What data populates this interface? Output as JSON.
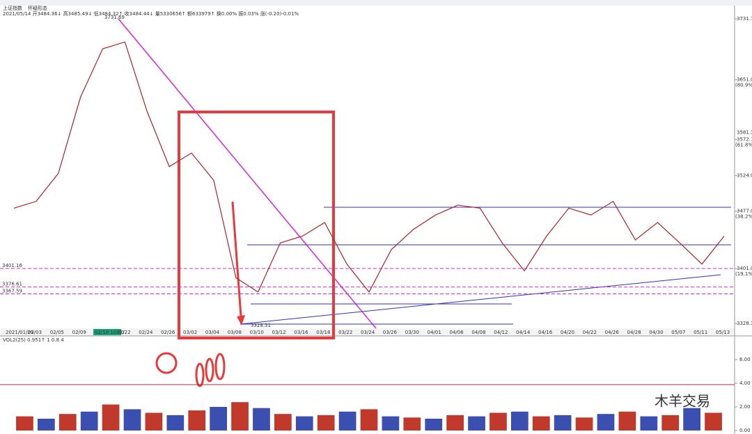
{
  "chart_data": [
    {
      "type": "line",
      "symbol": "上证指数",
      "pattern": "怀疑形态",
      "header": "2021/05/14 开3484.36↓ 高3485.49↓ 低3484.32↑ 收3484.44↓ 量5330656↑ 额633979↑ 换0.00% 振0.03% 涨(-0.20)-0.01%",
      "high_label": "3731.69",
      "low_label": "3328.31",
      "cursor_label": "02/18 10:00",
      "categories": [
        "2021/01/29",
        "02/03",
        "02/05",
        "02/09",
        null,
        "02/22",
        "02/24",
        "02/26",
        "03/02",
        "03/04",
        "03/08",
        "03/10",
        "03/12",
        "03/16",
        "03/18",
        "03/22",
        "03/24",
        "03/26",
        "03/30",
        "04/01",
        "04/06",
        "04/08",
        "04/12",
        "04/14",
        "04/16",
        "04/20",
        "04/22",
        "04/26",
        "04/28",
        "04/30",
        "05/07",
        "05/11",
        "05/13"
      ],
      "series": [
        {
          "name": "上证指数",
          "color": "#b22222",
          "values": [
            3481,
            3490,
            3527,
            3628,
            3692,
            3701,
            3609,
            3536,
            3554,
            3518,
            3389,
            3370,
            3435,
            3444,
            3462,
            3407,
            3370,
            3426,
            3453,
            3472,
            3485,
            3481,
            3435,
            3398,
            3444,
            3481,
            3472,
            3490,
            3439,
            3462,
            3435,
            3407,
            3444
          ]
        }
      ],
      "ylim": [
        3322,
        3740
      ],
      "yticks": [
        {
          "value": 3731.7,
          "label": "3731.7"
        },
        {
          "value": 3651,
          "label": "3651.0"
        },
        {
          "value": 3572.1,
          "label": "3572.1"
        },
        {
          "value": 3524,
          "label": "3524.0"
        },
        {
          "value": 3477,
          "label": "3477.0"
        },
        {
          "value": 3401,
          "label": "3401.0"
        },
        {
          "value": 3328.3,
          "label": "3328.3"
        }
      ],
      "fib_levels": [
        {
          "value": 3651,
          "label": "(80.9%)"
        },
        {
          "value": 3572.1,
          "label": "(61.8%)"
        },
        {
          "value": 3477,
          "label": "(38.2%)"
        },
        {
          "value": 3401,
          "label": "(19.1%)"
        }
      ],
      "last_price": {
        "value": 3581.3,
        "label": "3581.3"
      },
      "hlines": [
        3401.16,
        3376.61,
        3367.59
      ],
      "watermark": "木羊交易"
    },
    {
      "type": "bar",
      "title": "VOL2(25) 0.951↑ 1 0.8 4",
      "series": [
        {
          "name": "VOL2",
          "color": "#c0392b",
          "values": [
            1.2,
            1.0,
            1.4,
            1.6,
            2.2,
            1.8,
            1.5,
            1.3,
            1.7,
            2.0,
            2.4,
            1.9,
            1.4,
            1.2,
            1.3,
            1.6,
            1.8,
            1.2,
            1.1,
            1.0,
            1.3,
            1.2,
            1.5,
            1.6,
            1.2,
            1.3,
            1.1,
            1.4,
            1.6,
            1.2,
            1.3,
            1.9,
            1.5
          ]
        }
      ],
      "ylim": [
        0,
        8
      ],
      "yticks": [
        {
          "value": 0,
          "label": "0.00"
        },
        {
          "value": 2,
          "label": "2.00"
        },
        {
          "value": 4,
          "label": "4.00"
        },
        {
          "value": 6,
          "label": "6.00"
        }
      ]
    }
  ]
}
